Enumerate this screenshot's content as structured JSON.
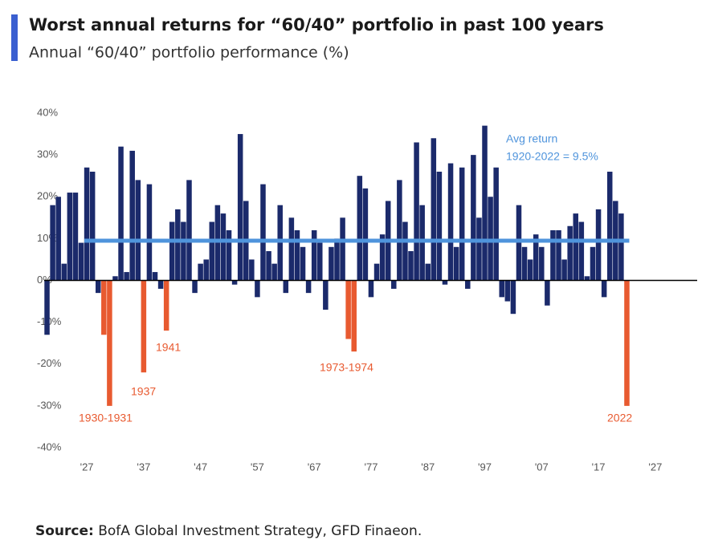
{
  "chart_data": {
    "type": "bar",
    "title": "Worst annual returns for “60/40” portfolio in past 100 years",
    "subtitle": "Annual “60/40” portfolio performance (%)",
    "x": [
      1920,
      1921,
      1922,
      1923,
      1924,
      1925,
      1926,
      1927,
      1928,
      1929,
      1930,
      1931,
      1932,
      1933,
      1934,
      1935,
      1936,
      1937,
      1938,
      1939,
      1940,
      1941,
      1942,
      1943,
      1944,
      1945,
      1946,
      1947,
      1948,
      1949,
      1950,
      1951,
      1952,
      1953,
      1954,
      1955,
      1956,
      1957,
      1958,
      1959,
      1960,
      1961,
      1962,
      1963,
      1964,
      1965,
      1966,
      1967,
      1968,
      1969,
      1970,
      1971,
      1972,
      1973,
      1974,
      1975,
      1976,
      1977,
      1978,
      1979,
      1980,
      1981,
      1982,
      1983,
      1984,
      1985,
      1986,
      1987,
      1988,
      1989,
      1990,
      1991,
      1992,
      1993,
      1994,
      1995,
      1996,
      1997,
      1998,
      1999,
      2000,
      2001,
      2002,
      2003,
      2004,
      2005,
      2006,
      2007,
      2008,
      2009,
      2010,
      2011,
      2012,
      2013,
      2014,
      2015,
      2016,
      2017,
      2018,
      2019,
      2020,
      2021,
      2022
    ],
    "values": [
      -13,
      18,
      20,
      4,
      21,
      21,
      9,
      27,
      26,
      -3,
      -13,
      -30,
      1,
      32,
      2,
      31,
      24,
      -22,
      23,
      2,
      -2,
      -12,
      14,
      17,
      14,
      24,
      -3,
      4,
      5,
      14,
      18,
      16,
      12,
      -1,
      35,
      19,
      5,
      -4,
      23,
      7,
      4,
      18,
      -3,
      15,
      12,
      8,
      -3,
      12,
      9,
      -7,
      8,
      10,
      15,
      -14,
      -17,
      25,
      22,
      -4,
      4,
      11,
      19,
      -2,
      24,
      14,
      7,
      33,
      18,
      4,
      34,
      26,
      -1,
      28,
      8,
      27,
      -2,
      30,
      15,
      37,
      20,
      27,
      -4,
      -5,
      -8,
      18,
      8,
      5,
      11,
      8,
      -6,
      12,
      12,
      5,
      13,
      16,
      14,
      1,
      8,
      17,
      -4,
      26,
      19,
      16,
      -30
    ],
    "color": "#1b2a6b",
    "highlight_years": [
      1930,
      1931,
      1937,
      1941,
      1973,
      1974,
      2022
    ],
    "highlight_color": "#e85a30",
    "average": 9.5,
    "average_color": "#4f94dc",
    "average_label": [
      "Avg return",
      "1920-2022 = 9.5%"
    ],
    "annotations": [
      "1930-1931",
      "1937",
      "1941",
      "1973-1974",
      "2022"
    ],
    "xlim": [
      1919.5,
      2029
    ],
    "xticks": [
      {
        "value": 1927,
        "label": "'27"
      },
      {
        "value": 1937,
        "label": "'37"
      },
      {
        "value": 1947,
        "label": "'47"
      },
      {
        "value": 1957,
        "label": "'57"
      },
      {
        "value": 1967,
        "label": "'67"
      },
      {
        "value": 1977,
        "label": "'77"
      },
      {
        "value": 1987,
        "label": "'87"
      },
      {
        "value": 1997,
        "label": "'97"
      },
      {
        "value": 2007,
        "label": "'07"
      },
      {
        "value": 2017,
        "label": "'17"
      },
      {
        "value": 2027,
        "label": "'27"
      }
    ],
    "ylim": [
      -40,
      40
    ],
    "yticks": [
      {
        "value": 40,
        "label": "40%"
      },
      {
        "value": 30,
        "label": "30%"
      },
      {
        "value": 20,
        "label": "20%"
      },
      {
        "value": 10,
        "label": "10%"
      },
      {
        "value": 0,
        "label": "0%"
      },
      {
        "value": -10,
        "label": "-10%"
      },
      {
        "value": -20,
        "label": "-20%"
      },
      {
        "value": -30,
        "label": "-30%"
      },
      {
        "value": -40,
        "label": "-40%"
      }
    ],
    "source_label": "Source:",
    "source": "BofA Global Investment Strategy, GFD Finaeon."
  }
}
